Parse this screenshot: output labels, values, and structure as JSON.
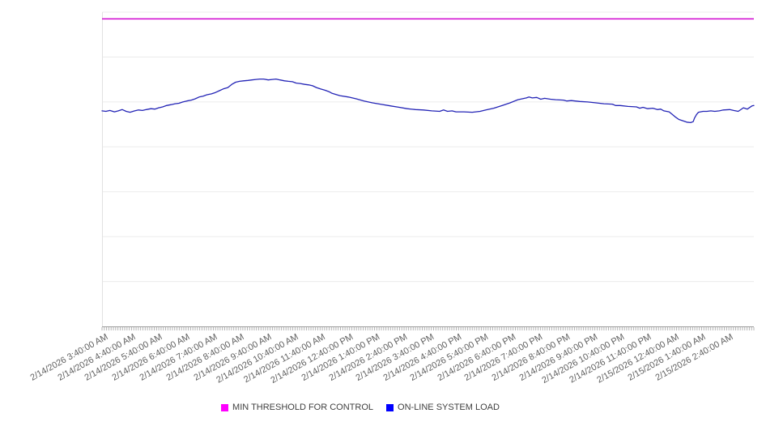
{
  "legend": {
    "items": [
      {
        "label": "MIN THRESHOLD FOR CONTROL",
        "color": "#ff00ff"
      },
      {
        "label": "ON-LINE SYSTEM LOAD",
        "color": "#0000ff"
      }
    ]
  },
  "chart_data": {
    "type": "line",
    "title": "",
    "xlabel": "",
    "ylabel": "",
    "grid": "horizontal-only",
    "legend_position": "bottom-center",
    "x_axis": {
      "labels": [
        "2/14/2026 3:40:00 AM",
        "2/14/2026 4:40:00 AM",
        "2/14/2026 5:40:00 AM",
        "2/14/2026 6:40:00 AM",
        "2/14/2026 7:40:00 AM",
        "2/14/2026 8:40:00 AM",
        "2/14/2026 9:40:00 AM",
        "2/14/2026 10:40:00 AM",
        "2/14/2026 11:40:00 AM",
        "2/14/2026 12:40:00 PM",
        "2/14/2026 1:40:00 PM",
        "2/14/2026 2:40:00 PM",
        "2/14/2026 3:40:00 PM",
        "2/14/2026 4:40:00 PM",
        "2/14/2026 5:40:00 PM",
        "2/14/2026 6:40:00 PM",
        "2/14/2026 7:40:00 PM",
        "2/14/2026 8:40:00 PM",
        "2/14/2026 9:40:00 PM",
        "2/14/2026 10:40:00 PM",
        "2/14/2026 11:40:00 PM",
        "2/15/2026 12:40:00 AM",
        "2/15/2026 1:40:00 AM",
        "2/15/2026 2:40:00 AM"
      ],
      "label_rotation_deg": -29,
      "minor_tick_count": 288,
      "minor_ticks_per_label": 12,
      "minor_tick_interval_minutes": 5
    },
    "y_axis": {
      "labels_visible": false,
      "divisions": 7,
      "range_units": [
        0,
        7
      ]
    },
    "series": [
      {
        "name": "MIN THRESHOLD FOR CONTROL",
        "type": "constant-line",
        "color": "#d316d3",
        "value_units": 6.85
      },
      {
        "name": "ON-LINE SYSTEM LOAD",
        "type": "line",
        "color": "#2324b6",
        "points_fx_units": [
          [
            0.0,
            4.8
          ],
          [
            0.006,
            4.79
          ],
          [
            0.012,
            4.81
          ],
          [
            0.019,
            4.78
          ],
          [
            0.025,
            4.8
          ],
          [
            0.031,
            4.83
          ],
          [
            0.037,
            4.79
          ],
          [
            0.043,
            4.77
          ],
          [
            0.05,
            4.8
          ],
          [
            0.056,
            4.82
          ],
          [
            0.062,
            4.81
          ],
          [
            0.068,
            4.83
          ],
          [
            0.075,
            4.85
          ],
          [
            0.081,
            4.84
          ],
          [
            0.087,
            4.87
          ],
          [
            0.093,
            4.89
          ],
          [
            0.099,
            4.92
          ],
          [
            0.106,
            4.94
          ],
          [
            0.112,
            4.96
          ],
          [
            0.118,
            4.97
          ],
          [
            0.124,
            5.0
          ],
          [
            0.13,
            5.02
          ],
          [
            0.137,
            5.04
          ],
          [
            0.143,
            5.07
          ],
          [
            0.149,
            5.11
          ],
          [
            0.155,
            5.13
          ],
          [
            0.161,
            5.16
          ],
          [
            0.168,
            5.18
          ],
          [
            0.174,
            5.21
          ],
          [
            0.18,
            5.25
          ],
          [
            0.186,
            5.29
          ],
          [
            0.193,
            5.32
          ],
          [
            0.199,
            5.39
          ],
          [
            0.205,
            5.44
          ],
          [
            0.211,
            5.46
          ],
          [
            0.217,
            5.47
          ],
          [
            0.224,
            5.48
          ],
          [
            0.23,
            5.49
          ],
          [
            0.236,
            5.5
          ],
          [
            0.242,
            5.51
          ],
          [
            0.248,
            5.51
          ],
          [
            0.255,
            5.49
          ],
          [
            0.261,
            5.5
          ],
          [
            0.267,
            5.51
          ],
          [
            0.273,
            5.49
          ],
          [
            0.28,
            5.47
          ],
          [
            0.286,
            5.46
          ],
          [
            0.292,
            5.45
          ],
          [
            0.298,
            5.42
          ],
          [
            0.304,
            5.41
          ],
          [
            0.311,
            5.39
          ],
          [
            0.317,
            5.38
          ],
          [
            0.323,
            5.36
          ],
          [
            0.329,
            5.32
          ],
          [
            0.335,
            5.29
          ],
          [
            0.342,
            5.26
          ],
          [
            0.348,
            5.23
          ],
          [
            0.353,
            5.19
          ],
          [
            0.365,
            5.14
          ],
          [
            0.378,
            5.11
          ],
          [
            0.39,
            5.07
          ],
          [
            0.402,
            5.02
          ],
          [
            0.415,
            4.98
          ],
          [
            0.427,
            4.95
          ],
          [
            0.443,
            4.91
          ],
          [
            0.456,
            4.88
          ],
          [
            0.468,
            4.85
          ],
          [
            0.481,
            4.83
          ],
          [
            0.493,
            4.82
          ],
          [
            0.506,
            4.8
          ],
          [
            0.518,
            4.79
          ],
          [
            0.524,
            4.82
          ],
          [
            0.53,
            4.79
          ],
          [
            0.537,
            4.8
          ],
          [
            0.543,
            4.78
          ],
          [
            0.555,
            4.78
          ],
          [
            0.568,
            4.77
          ],
          [
            0.58,
            4.79
          ],
          [
            0.589,
            4.82
          ],
          [
            0.601,
            4.86
          ],
          [
            0.614,
            4.92
          ],
          [
            0.626,
            4.98
          ],
          [
            0.638,
            5.05
          ],
          [
            0.651,
            5.09
          ],
          [
            0.655,
            5.11
          ],
          [
            0.66,
            5.09
          ],
          [
            0.667,
            5.1
          ],
          [
            0.673,
            5.06
          ],
          [
            0.679,
            5.08
          ],
          [
            0.688,
            5.06
          ],
          [
            0.696,
            5.05
          ],
          [
            0.708,
            5.04
          ],
          [
            0.713,
            5.02
          ],
          [
            0.72,
            5.03
          ],
          [
            0.733,
            5.01
          ],
          [
            0.745,
            5.0
          ],
          [
            0.758,
            4.98
          ],
          [
            0.77,
            4.96
          ],
          [
            0.783,
            4.95
          ],
          [
            0.788,
            4.92
          ],
          [
            0.795,
            4.92
          ],
          [
            0.807,
            4.9
          ],
          [
            0.82,
            4.89
          ],
          [
            0.825,
            4.86
          ],
          [
            0.83,
            4.88
          ],
          [
            0.837,
            4.85
          ],
          [
            0.845,
            4.86
          ],
          [
            0.852,
            4.83
          ],
          [
            0.857,
            4.84
          ],
          [
            0.862,
            4.8
          ],
          [
            0.87,
            4.78
          ],
          [
            0.875,
            4.72
          ],
          [
            0.88,
            4.66
          ],
          [
            0.885,
            4.61
          ],
          [
            0.891,
            4.58
          ],
          [
            0.897,
            4.55
          ],
          [
            0.903,
            4.54
          ],
          [
            0.907,
            4.56
          ],
          [
            0.909,
            4.64
          ],
          [
            0.912,
            4.72
          ],
          [
            0.915,
            4.77
          ],
          [
            0.922,
            4.79
          ],
          [
            0.928,
            4.79
          ],
          [
            0.934,
            4.8
          ],
          [
            0.94,
            4.79
          ],
          [
            0.947,
            4.8
          ],
          [
            0.953,
            4.82
          ],
          [
            0.963,
            4.83
          ],
          [
            0.969,
            4.81
          ],
          [
            0.976,
            4.79
          ],
          [
            0.984,
            4.87
          ],
          [
            0.99,
            4.84
          ],
          [
            0.997,
            4.91
          ],
          [
            1.0,
            4.92
          ]
        ]
      }
    ],
    "colors": {
      "gridline": "#ececec",
      "left_axis_line": "#e2e2e2",
      "bottom_axis_line": "#9e9e9e",
      "minor_tick": "#b3b3b3",
      "x_label_text": "#5f5f5f",
      "legend_text": "#404040"
    }
  }
}
